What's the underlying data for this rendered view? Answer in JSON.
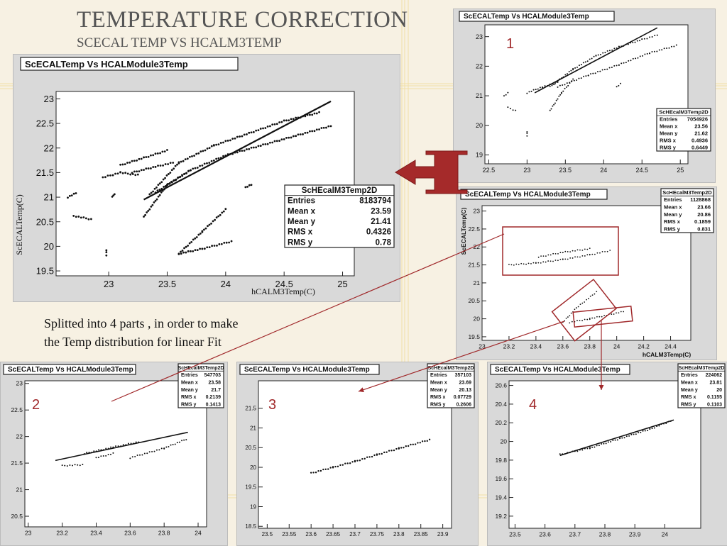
{
  "slide": {
    "title": "TEMPERATURE CORRECTION",
    "subtitle": "SCECAL TEMP VS HCALM3TEMP",
    "note_line1": "Splitted into 4 parts , in order to make",
    "note_line2": "the Temp distribution for linear Fit"
  },
  "colors": {
    "accent": "#a0282a",
    "point": "#111111"
  },
  "chart_data": [
    {
      "type": "scatter",
      "id": "main",
      "title": "ScECALTemp Vs HCALModule3Temp",
      "xlabel": "hCALM3Temp(C)",
      "ylabel": "ScECALTemp(C)",
      "xlim": [
        22.55,
        25.1
      ],
      "ylim": [
        19.4,
        23.15
      ],
      "xticks": [
        "23",
        "23.5",
        "24",
        "24.5",
        "25"
      ],
      "yticks": [
        "19.5",
        "20",
        "20.5",
        "21",
        "21.5",
        "22",
        "22.5",
        "23"
      ],
      "stats": {
        "name": "ScHEcalM3Temp2D",
        "rows": [
          [
            "Entries",
            "8183794"
          ],
          [
            "Mean x",
            "23.59"
          ],
          [
            "Mean y",
            "21.41"
          ],
          [
            "RMS x",
            "0.4326"
          ],
          [
            "RMS y",
            "0.78"
          ]
        ]
      },
      "fit": [
        [
          23.3,
          20.95
        ],
        [
          24.9,
          22.95
        ]
      ],
      "series": [
        {
          "x": [
            23.35,
            23.6,
            23.9,
            24.2,
            24.5,
            24.8
          ],
          "y": [
            21.05,
            21.7,
            22.05,
            22.3,
            22.55,
            22.72
          ]
        },
        {
          "x": [
            23.4,
            23.7,
            24.0,
            24.3,
            24.6,
            24.9
          ],
          "y": [
            21.1,
            21.55,
            21.85,
            22.05,
            22.25,
            22.45
          ]
        },
        {
          "x": [
            23.3,
            23.5,
            23.7
          ],
          "y": [
            20.6,
            21.25,
            21.55
          ]
        },
        {
          "x": [
            23.6,
            23.8,
            24.0
          ],
          "y": [
            19.85,
            20.3,
            20.75
          ]
        },
        {
          "x": [
            23.6,
            23.8,
            24.05
          ],
          "y": [
            19.85,
            19.95,
            20.1
          ]
        },
        {
          "x": [
            23.1,
            23.3,
            23.5
          ],
          "y": [
            21.65,
            21.8,
            21.95
          ]
        },
        {
          "x": [
            23.2,
            23.4,
            23.55
          ],
          "y": [
            21.5,
            21.62,
            21.7
          ]
        },
        {
          "x": [
            22.95,
            23.1,
            23.25
          ],
          "y": [
            21.4,
            21.5,
            21.45
          ]
        },
        {
          "x": [
            22.65,
            22.72
          ],
          "y": [
            21.0,
            21.08
          ]
        },
        {
          "x": [
            22.7,
            22.85
          ],
          "y": [
            20.62,
            20.55
          ]
        },
        {
          "x": [
            23.03,
            23.05
          ],
          "y": [
            21.0,
            21.07
          ]
        },
        {
          "x": [
            22.98,
            22.98
          ],
          "y": [
            19.82,
            19.92
          ]
        },
        {
          "x": [
            24.17,
            24.22
          ],
          "y": [
            21.2,
            21.25
          ]
        }
      ]
    },
    {
      "type": "scatter",
      "id": "p1",
      "marker": "1",
      "title": "ScECALTemp Vs HCALModule3Temp",
      "xlabel": "",
      "ylabel": "",
      "xlim": [
        22.45,
        25.1
      ],
      "ylim": [
        18.7,
        23.4
      ],
      "xticks": [
        "22.5",
        "23",
        "23.5",
        "24",
        "24.5",
        "25"
      ],
      "yticks": [
        "19",
        "20",
        "21",
        "22",
        "23"
      ],
      "stats": {
        "name": "ScHEcalM3Temp2D",
        "rows": [
          [
            "Entries",
            "7054926"
          ],
          [
            "Mean x",
            "23.56"
          ],
          [
            "Mean y",
            "21.62"
          ],
          [
            "RMS x",
            "0.4936"
          ],
          [
            "RMS y",
            "0.6449"
          ]
        ]
      },
      "fit": [
        [
          23.1,
          21.1
        ],
        [
          24.7,
          23.3
        ]
      ],
      "series": [
        {
          "x": [
            23.3,
            23.6,
            23.9,
            24.2,
            24.5,
            24.7
          ],
          "y": [
            21.3,
            21.9,
            22.35,
            22.65,
            22.9,
            23.05
          ]
        },
        {
          "x": [
            23.4,
            23.8,
            24.2,
            24.6,
            24.95
          ],
          "y": [
            21.3,
            21.7,
            22.05,
            22.45,
            22.7
          ]
        },
        {
          "x": [
            23.3,
            23.45,
            23.6
          ],
          "y": [
            20.5,
            21.1,
            21.55
          ]
        },
        {
          "x": [
            23.0,
            23.2,
            23.4
          ],
          "y": [
            21.1,
            21.3,
            21.45
          ]
        },
        {
          "x": [
            22.7,
            22.75
          ],
          "y": [
            21.0,
            21.1
          ]
        },
        {
          "x": [
            22.75,
            22.85
          ],
          "y": [
            20.6,
            20.5
          ]
        },
        {
          "x": [
            23.0,
            23.0
          ],
          "y": [
            19.65,
            19.78
          ]
        },
        {
          "x": [
            24.17,
            24.22
          ],
          "y": [
            21.3,
            21.4
          ]
        }
      ]
    },
    {
      "type": "scatter",
      "id": "pmid",
      "title": "ScECALTemp Vs HCALModule3Temp",
      "xlabel": "hCALM3Temp(C)",
      "ylabel": "ScECALTemp(C)",
      "xlim": [
        23.0,
        24.55
      ],
      "ylim": [
        19.4,
        23.15
      ],
      "xticks": [
        "23",
        "23.2",
        "23.4",
        "23.6",
        "23.8",
        "24",
        "24.2",
        "24.4"
      ],
      "yticks": [
        "19.5",
        "20",
        "20.5",
        "21",
        "21.5",
        "22",
        "22.5",
        "23"
      ],
      "stats": {
        "name": "ScHEcalM3Temp2D",
        "rows": [
          [
            "Entries",
            "1128868"
          ],
          [
            "Mean x",
            "23.66"
          ],
          [
            "Mean y",
            "20.86"
          ],
          [
            "RMS x",
            "0.1859"
          ],
          [
            "RMS y",
            "0.831"
          ]
        ]
      },
      "series": [
        {
          "x": [
            23.2,
            23.4,
            23.6,
            23.8,
            23.95
          ],
          "y": [
            21.5,
            21.55,
            21.65,
            21.78,
            21.9
          ]
        },
        {
          "x": [
            23.42,
            23.6,
            23.8
          ],
          "y": [
            21.72,
            21.85,
            21.95
          ]
        },
        {
          "x": [
            23.6,
            23.7,
            23.85
          ],
          "y": [
            19.9,
            20.3,
            20.75
          ]
        },
        {
          "x": [
            23.65,
            23.8,
            24.05
          ],
          "y": [
            19.9,
            20.0,
            20.2
          ]
        }
      ]
    },
    {
      "type": "scatter",
      "id": "p2",
      "marker": "2",
      "title": "ScECALTemp Vs HCALModule3Temp",
      "xlabel": "",
      "ylabel": "",
      "xlim": [
        22.98,
        24.05
      ],
      "ylim": [
        20.3,
        23.05
      ],
      "xticks": [
        "23",
        "23.2",
        "23.4",
        "23.6",
        "23.8",
        "24"
      ],
      "yticks": [
        "20.5",
        "21",
        "21.5",
        "22",
        "22.5",
        "23"
      ],
      "stats": {
        "name": "ScHEcalM3Temp2D",
        "rows": [
          [
            "Entries",
            "547703"
          ],
          [
            "Mean x",
            "23.58"
          ],
          [
            "Mean y",
            "21.7"
          ],
          [
            "RMS x",
            "0.2139"
          ],
          [
            "RMS y",
            "0.1413"
          ]
        ]
      },
      "fit": [
        [
          23.16,
          21.55
        ],
        [
          23.94,
          22.08
        ]
      ],
      "series": [
        {
          "x": [
            23.2,
            23.32
          ],
          "y": [
            21.45,
            21.47
          ]
        },
        {
          "x": [
            23.33,
            23.5,
            23.65
          ],
          "y": [
            21.68,
            21.8,
            21.9
          ]
        },
        {
          "x": [
            23.4,
            23.5
          ],
          "y": [
            21.6,
            21.68
          ]
        },
        {
          "x": [
            23.6,
            23.8,
            23.93
          ],
          "y": [
            21.6,
            21.78,
            21.95
          ]
        }
      ]
    },
    {
      "type": "scatter",
      "id": "p3",
      "marker": "3",
      "title": "ScECALTemp Vs HCALModule3Temp",
      "xlabel": "",
      "ylabel": "",
      "xlim": [
        23.48,
        23.92
      ],
      "ylim": [
        18.45,
        22.2
      ],
      "xticks": [
        "23.5",
        "23.55",
        "23.6",
        "23.65",
        "23.7",
        "23.75",
        "23.8",
        "23.85",
        "23.9"
      ],
      "yticks": [
        "18.5",
        "19",
        "19.5",
        "20",
        "20.5",
        "21",
        "21.5"
      ],
      "stats": {
        "name": "ScHEcalM3Temp2D",
        "rows": [
          [
            "Entries",
            "357103"
          ],
          [
            "Mean x",
            "23.69"
          ],
          [
            "Mean y",
            "20.13"
          ],
          [
            "RMS x",
            "0.07729"
          ],
          [
            "RMS y",
            "0.2606"
          ]
        ]
      },
      "series": [
        {
          "x": [
            23.6,
            23.65,
            23.7,
            23.75,
            23.8,
            23.87
          ],
          "y": [
            19.85,
            20.0,
            20.15,
            20.32,
            20.48,
            20.7
          ]
        }
      ]
    },
    {
      "type": "scatter",
      "id": "p4",
      "marker": "4",
      "title": "ScECALTemp Vs HCALModule3Temp",
      "xlabel": "",
      "ylabel": "",
      "xlim": [
        23.48,
        24.12
      ],
      "ylim": [
        19.07,
        20.65
      ],
      "xticks": [
        "23.5",
        "23.6",
        "23.7",
        "23.8",
        "23.9",
        "24"
      ],
      "yticks": [
        "19.2",
        "19.4",
        "19.6",
        "19.8",
        "20",
        "20.2",
        "20.4",
        "20.6"
      ],
      "stats": {
        "name": "ScHEcalM3Temp2D",
        "rows": [
          [
            "Entries",
            "224062"
          ],
          [
            "Mean x",
            "23.81"
          ],
          [
            "Mean y",
            "20"
          ],
          [
            "RMS x",
            "0.1155"
          ],
          [
            "RMS y",
            "0.1103"
          ]
        ]
      },
      "fit": [
        [
          23.65,
          19.85
        ],
        [
          24.03,
          20.23
        ]
      ],
      "series": [
        {
          "x": [
            23.65,
            23.75,
            23.85,
            23.95,
            24.02
          ],
          "y": [
            19.86,
            19.93,
            20.03,
            20.13,
            20.22
          ]
        }
      ]
    }
  ]
}
